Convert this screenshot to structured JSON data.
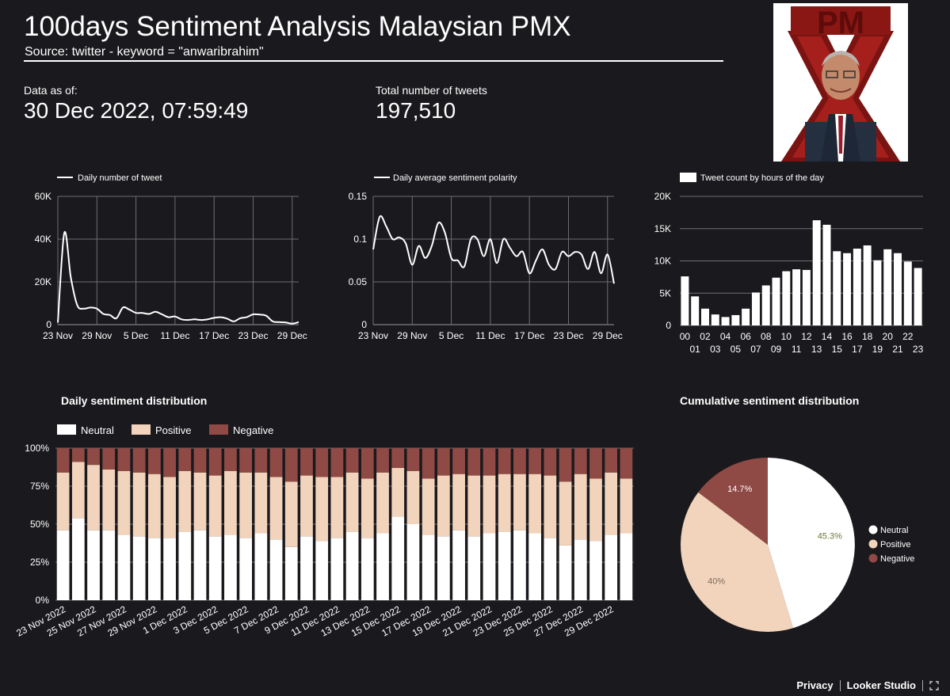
{
  "header": {
    "title": "100days Sentiment Analysis Malaysian PMX",
    "subtitle": "Source: twitter - keyword = \"anwaribrahim\""
  },
  "kpis": {
    "data_as_of_label": "Data as of:",
    "data_as_of_value": "30 Dec 2022, 07:59:49",
    "total_tweets_label": "Total number of tweets",
    "total_tweets_value": "197,510"
  },
  "logo": {
    "letters": "PMX"
  },
  "colors": {
    "background": "#1a191d",
    "neutral": "#ffffff",
    "positive": "#f2d4bc",
    "negative": "#8f4a45",
    "grid": "#6e6e73"
  },
  "footer": {
    "privacy": "Privacy",
    "product": "Looker Studio",
    "fullscreen_icon": "fullscreen-icon"
  },
  "chart_data": [
    {
      "type": "line",
      "legend": "Daily number of tweet",
      "x_ticks": [
        "23 Nov",
        "29 Nov",
        "5 Dec",
        "11 Dec",
        "17 Dec",
        "23 Dec",
        "29 Dec"
      ],
      "y_ticks": [
        "0",
        "20K",
        "40K",
        "60K"
      ],
      "ylim": [
        0,
        60000
      ],
      "x": [
        "2022-11-23",
        "2022-11-24",
        "2022-11-25",
        "2022-11-26",
        "2022-11-27",
        "2022-11-28",
        "2022-11-29",
        "2022-11-30",
        "2022-12-01",
        "2022-12-02",
        "2022-12-03",
        "2022-12-04",
        "2022-12-05",
        "2022-12-06",
        "2022-12-07",
        "2022-12-08",
        "2022-12-09",
        "2022-12-10",
        "2022-12-11",
        "2022-12-12",
        "2022-12-13",
        "2022-12-14",
        "2022-12-15",
        "2022-12-16",
        "2022-12-17",
        "2022-12-18",
        "2022-12-19",
        "2022-12-20",
        "2022-12-21",
        "2022-12-22",
        "2022-12-23",
        "2022-12-24",
        "2022-12-25",
        "2022-12-26",
        "2022-12-27",
        "2022-12-28",
        "2022-12-29",
        "2022-12-30"
      ],
      "values": [
        1000,
        43000,
        22000,
        9000,
        7500,
        8000,
        7500,
        5000,
        4500,
        3000,
        8000,
        7000,
        5500,
        5500,
        5000,
        6000,
        4800,
        3500,
        3800,
        2500,
        2200,
        2500,
        2200,
        2500,
        3200,
        3500,
        2800,
        1500,
        3000,
        3500,
        4800,
        4700,
        4200,
        1500,
        1200,
        1000,
        500,
        1200
      ]
    },
    {
      "type": "line",
      "legend": "Daily average sentiment polarity",
      "x_ticks": [
        "23 Nov",
        "29 Nov",
        "5 Dec",
        "11 Dec",
        "17 Dec",
        "23 Dec",
        "29 Dec"
      ],
      "y_ticks": [
        "0",
        "0.05",
        "0.1",
        "0.15"
      ],
      "ylim": [
        0,
        0.15
      ],
      "x": [
        "2022-11-23",
        "2022-11-24",
        "2022-11-25",
        "2022-11-26",
        "2022-11-27",
        "2022-11-28",
        "2022-11-29",
        "2022-11-30",
        "2022-12-01",
        "2022-12-02",
        "2022-12-03",
        "2022-12-04",
        "2022-12-05",
        "2022-12-06",
        "2022-12-07",
        "2022-12-08",
        "2022-12-09",
        "2022-12-10",
        "2022-12-11",
        "2022-12-12",
        "2022-12-13",
        "2022-12-14",
        "2022-12-15",
        "2022-12-16",
        "2022-12-17",
        "2022-12-18",
        "2022-12-19",
        "2022-12-20",
        "2022-12-21",
        "2022-12-22",
        "2022-12-23",
        "2022-12-24",
        "2022-12-25",
        "2022-12-26",
        "2022-12-27",
        "2022-12-28",
        "2022-12-29",
        "2022-12-30"
      ],
      "values": [
        0.088,
        0.126,
        0.115,
        0.1,
        0.102,
        0.095,
        0.07,
        0.092,
        0.078,
        0.092,
        0.119,
        0.108,
        0.078,
        0.075,
        0.068,
        0.1,
        0.1,
        0.08,
        0.1,
        0.072,
        0.1,
        0.09,
        0.08,
        0.085,
        0.06,
        0.075,
        0.088,
        0.07,
        0.065,
        0.085,
        0.08,
        0.085,
        0.082,
        0.065,
        0.085,
        0.06,
        0.082,
        0.048
      ]
    },
    {
      "type": "bar",
      "legend": "Tweet count by hours of the day",
      "categories": [
        "00",
        "01",
        "02",
        "03",
        "04",
        "05",
        "06",
        "07",
        "08",
        "09",
        "10",
        "11",
        "12",
        "13",
        "14",
        "15",
        "16",
        "17",
        "18",
        "19",
        "20",
        "21",
        "22",
        "23"
      ],
      "y_ticks": [
        "0",
        "5K",
        "10K",
        "15K",
        "20K"
      ],
      "ylim": [
        0,
        20000
      ],
      "values": [
        7600,
        4500,
        2600,
        1700,
        1300,
        1600,
        2600,
        5100,
        6200,
        7400,
        8400,
        8700,
        8600,
        16300,
        15600,
        11500,
        11200,
        11900,
        12400,
        10100,
        11800,
        11200,
        9900,
        8900
      ]
    },
    {
      "type": "bar",
      "stacked": true,
      "title": "Daily sentiment distribution",
      "y_ticks": [
        "0%",
        "25%",
        "50%",
        "75%",
        "100%"
      ],
      "x_tick_labels": [
        "23 Nov 2022",
        "25 Nov 2022",
        "27 Nov 2022",
        "29 Nov 2022",
        "1 Dec 2022",
        "3 Dec 2022",
        "5 Dec 2022",
        "7 Dec 2022",
        "9 Dec 2022",
        "11 Dec 2022",
        "13 Dec 2022",
        "15 Dec 2022",
        "17 Dec 2022",
        "19 Dec 2022",
        "21 Dec 2022",
        "23 Dec 2022",
        "25 Dec 2022",
        "27 Dec 2022",
        "29 Dec 2022"
      ],
      "series": [
        {
          "name": "Neutral",
          "values": [
            46,
            54,
            46,
            46,
            43,
            42,
            41,
            41,
            45,
            46,
            42,
            43,
            41,
            44,
            40,
            35,
            42,
            39,
            41,
            45,
            41,
            44,
            55,
            50,
            43,
            42,
            46,
            42,
            44,
            45,
            46,
            44,
            41,
            36,
            40,
            39,
            43,
            44
          ]
        },
        {
          "name": "Positive",
          "values": [
            38,
            37,
            43,
            40,
            42,
            42,
            42,
            40,
            40,
            38,
            40,
            42,
            43,
            40,
            41,
            43,
            40,
            42,
            40,
            39,
            39,
            40,
            32,
            35,
            37,
            40,
            37,
            40,
            38,
            38,
            37,
            39,
            41,
            42,
            43,
            41,
            41,
            36
          ]
        },
        {
          "name": "Negative",
          "values": [
            16,
            9,
            11,
            14,
            15,
            16,
            17,
            19,
            15,
            16,
            18,
            15,
            16,
            16,
            19,
            22,
            18,
            19,
            19,
            16,
            20,
            16,
            13,
            15,
            20,
            18,
            17,
            18,
            18,
            17,
            17,
            17,
            18,
            22,
            17,
            20,
            16,
            20
          ]
        }
      ]
    },
    {
      "type": "pie",
      "title": "Cumulative sentiment distribution",
      "labels": [
        "Neutral",
        "Positive",
        "Negative"
      ],
      "values": [
        45.3,
        40,
        14.7
      ],
      "value_labels": [
        "45.3%",
        "40%",
        "14.7%"
      ]
    }
  ]
}
